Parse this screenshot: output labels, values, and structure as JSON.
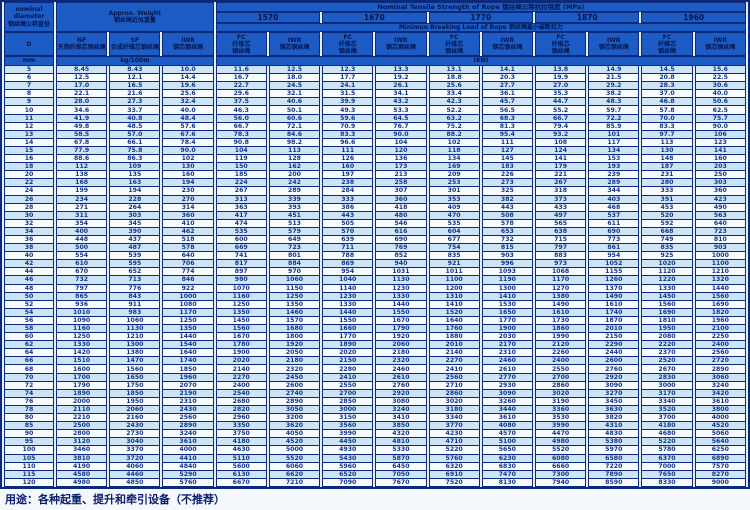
{
  "header": {
    "corner_en1": "nominal",
    "corner_en2": "diameter",
    "corner_zh": "钢丝绳公称直径",
    "weight_en": "Approx. Weight",
    "weight_zh": "钢丝绳近似重量",
    "tensile_title": "Nominal Tensile Strength of Rope 钢丝绳公称抗拉强度 (MPa)",
    "breaking_title": "Minimun Breaking Load of Rope 钢丝绳最小破断拉力",
    "strengths": [
      "1570",
      "1670",
      "1770",
      "1870",
      "1960"
    ],
    "d_label": "D",
    "d_unit": "mm",
    "nf_en": "NF",
    "nf_zh": "天然纤维芯钢丝绳",
    "sf_en": "SF",
    "sf_zh": "合成纤维芯钢丝绳",
    "iwr_en": "IWR",
    "iwr_zh": "钢芯钢丝绳",
    "weight_unit": "kg/100m",
    "fc_en": "FC",
    "fc_zh1": "纤维芯",
    "fc_zh2": "钢丝绳",
    "iwrc_en": "IWR",
    "iwrc_zh": "钢芯钢丝绳",
    "kn_label": "(KN)"
  },
  "rows": [
    [
      "5",
      "8.45",
      "8.43",
      "10.0",
      "11.6",
      "12.5",
      "12.3",
      "13.3",
      "13.1",
      "14.1",
      "13.8",
      "14.9",
      "14.5",
      "15.6"
    ],
    [
      "6",
      "12.5",
      "12.1",
      "14.4",
      "16.7",
      "18.0",
      "17.7",
      "19.2",
      "18.8",
      "20.3",
      "19.9",
      "21.5",
      "20.8",
      "22.5"
    ],
    [
      "7",
      "17.0",
      "16.5",
      "19.6",
      "22.7",
      "24.5",
      "24.1",
      "26.1",
      "25.6",
      "27.7",
      "27.0",
      "29.2",
      "28.3",
      "30.6"
    ],
    [
      "8",
      "22.1",
      "21.6",
      "25.6",
      "29.6",
      "32.1",
      "31.5",
      "34.1",
      "33.4",
      "36.1",
      "35.3",
      "38.2",
      "37.0",
      "40.0"
    ],
    [
      "9",
      "28.0",
      "27.3",
      "32.4",
      "37.5",
      "40.6",
      "39.9",
      "43.2",
      "42.3",
      "45.7",
      "44.7",
      "48.3",
      "46.8",
      "50.6"
    ],
    [
      "10",
      "34.6",
      "33.7",
      "40.0",
      "46.3",
      "50.1",
      "49.3",
      "53.3",
      "52.2",
      "56.5",
      "55.2",
      "59.7",
      "57.8",
      "62.5"
    ],
    [
      "11",
      "41.9",
      "40.8",
      "48.4",
      "56.0",
      "60.6",
      "59.6",
      "64.5",
      "63.2",
      "68.3",
      "66.7",
      "72.2",
      "70.0",
      "75.7"
    ],
    [
      "12",
      "49.8",
      "48.5",
      "57.6",
      "66.7",
      "72.1",
      "70.9",
      "76.7",
      "75.2",
      "81.3",
      "79.4",
      "85.9",
      "83.3",
      "90.0"
    ],
    [
      "13",
      "58.5",
      "57.0",
      "67.6",
      "78.3",
      "84.6",
      "83.3",
      "90.0",
      "88.2",
      "95.4",
      "93.2",
      "101",
      "97.7",
      "106"
    ],
    [
      "14",
      "67.8",
      "66.1",
      "78.4",
      "90.8",
      "98.2",
      "96.6",
      "104",
      "102",
      "111",
      "108",
      "117",
      "113",
      "123"
    ],
    [
      "15",
      "77.9",
      "75.8",
      "90.0",
      "104",
      "113",
      "111",
      "120",
      "118",
      "127",
      "124",
      "134",
      "130",
      "141"
    ],
    [
      "16",
      "88.6",
      "86.3",
      "102",
      "119",
      "128",
      "126",
      "136",
      "134",
      "145",
      "141",
      "153",
      "148",
      "160"
    ],
    [
      "18",
      "112",
      "109",
      "130",
      "150",
      "162",
      "160",
      "173",
      "169",
      "183",
      "179",
      "193",
      "187",
      "203"
    ],
    [
      "20",
      "138",
      "135",
      "160",
      "185",
      "200",
      "197",
      "213",
      "209",
      "226",
      "221",
      "239",
      "231",
      "250"
    ],
    [
      "22",
      "168",
      "163",
      "194",
      "224",
      "242",
      "238",
      "258",
      "253",
      "273",
      "267",
      "289",
      "280",
      "303"
    ],
    [
      "24",
      "199",
      "194",
      "230",
      "267",
      "289",
      "284",
      "307",
      "301",
      "325",
      "318",
      "344",
      "333",
      "360"
    ],
    [
      "26",
      "234",
      "228",
      "270",
      "313",
      "339",
      "333",
      "360",
      "353",
      "382",
      "373",
      "403",
      "391",
      "423"
    ],
    [
      "28",
      "271",
      "264",
      "314",
      "363",
      "393",
      "386",
      "418",
      "409",
      "443",
      "433",
      "468",
      "453",
      "490"
    ],
    [
      "30",
      "311",
      "303",
      "360",
      "417",
      "451",
      "443",
      "480",
      "470",
      "508",
      "497",
      "537",
      "520",
      "563"
    ],
    [
      "32",
      "354",
      "345",
      "410",
      "474",
      "513",
      "505",
      "546",
      "535",
      "578",
      "565",
      "611",
      "592",
      "640"
    ],
    [
      "34",
      "400",
      "390",
      "462",
      "535",
      "579",
      "570",
      "616",
      "604",
      "653",
      "638",
      "690",
      "668",
      "723"
    ],
    [
      "36",
      "448",
      "437",
      "518",
      "600",
      "649",
      "639",
      "690",
      "677",
      "732",
      "715",
      "773",
      "749",
      "810"
    ],
    [
      "38",
      "500",
      "487",
      "578",
      "669",
      "723",
      "711",
      "769",
      "754",
      "815",
      "797",
      "861",
      "835",
      "903"
    ],
    [
      "40",
      "554",
      "539",
      "640",
      "741",
      "801",
      "788",
      "852",
      "835",
      "903",
      "883",
      "954",
      "925",
      "1000"
    ],
    [
      "42",
      "610",
      "595",
      "706",
      "817",
      "884",
      "869",
      "940",
      "921",
      "996",
      "973",
      "1052",
      "1020",
      "1100"
    ],
    [
      "44",
      "670",
      "652",
      "774",
      "897",
      "970",
      "954",
      "1031",
      "1011",
      "1093",
      "1068",
      "1155",
      "1120",
      "1210"
    ],
    [
      "46",
      "732",
      "713",
      "846",
      "980",
      "1060",
      "1040",
      "1130",
      "1100",
      "1190",
      "1170",
      "1260",
      "1220",
      "1320"
    ],
    [
      "48",
      "797",
      "776",
      "922",
      "1070",
      "1150",
      "1140",
      "1230",
      "1200",
      "1300",
      "1270",
      "1370",
      "1330",
      "1440"
    ],
    [
      "50",
      "865",
      "843",
      "1000",
      "1160",
      "1250",
      "1230",
      "1330",
      "1310",
      "1410",
      "1380",
      "1490",
      "1450",
      "1560"
    ],
    [
      "52",
      "936",
      "911",
      "1080",
      "1250",
      "1350",
      "1330",
      "1440",
      "1410",
      "1530",
      "1490",
      "1610",
      "1560",
      "1690"
    ],
    [
      "54",
      "1010",
      "983",
      "1170",
      "1350",
      "1460",
      "1440",
      "1550",
      "1520",
      "1650",
      "1610",
      "1740",
      "1690",
      "1820"
    ],
    [
      "56",
      "1090",
      "1060",
      "1250",
      "1450",
      "1570",
      "1550",
      "1670",
      "1640",
      "1770",
      "1730",
      "1870",
      "1810",
      "1960"
    ],
    [
      "58",
      "1160",
      "1130",
      "1350",
      "1560",
      "1680",
      "1660",
      "1790",
      "1760",
      "1900",
      "1860",
      "2010",
      "1950",
      "2100"
    ],
    [
      "60",
      "1250",
      "1210",
      "1440",
      "1670",
      "1800",
      "1770",
      "1920",
      "1880",
      "2030",
      "1990",
      "2150",
      "2080",
      "2250"
    ],
    [
      "62",
      "1330",
      "1300",
      "1540",
      "1780",
      "1920",
      "1890",
      "2060",
      "2010",
      "2170",
      "2120",
      "2290",
      "2220",
      "2400"
    ],
    [
      "64",
      "1420",
      "1380",
      "1640",
      "1900",
      "2050",
      "2020",
      "2180",
      "2140",
      "2310",
      "2260",
      "2440",
      "2370",
      "2560"
    ],
    [
      "66",
      "1510",
      "1470",
      "1740",
      "2020",
      "2180",
      "2150",
      "2320",
      "2270",
      "2460",
      "2400",
      "2600",
      "2520",
      "2720"
    ],
    [
      "68",
      "1600",
      "1560",
      "1850",
      "2140",
      "2320",
      "2280",
      "2460",
      "2410",
      "2610",
      "2550",
      "2760",
      "2670",
      "2890"
    ],
    [
      "70",
      "1700",
      "1650",
      "1960",
      "2270",
      "2450",
      "2410",
      "2610",
      "2560",
      "2770",
      "2700",
      "2920",
      "2830",
      "3060"
    ],
    [
      "72",
      "1790",
      "1750",
      "2070",
      "2400",
      "2600",
      "2550",
      "2760",
      "2710",
      "2930",
      "2860",
      "3090",
      "3000",
      "3240"
    ],
    [
      "74",
      "1890",
      "1850",
      "2190",
      "2540",
      "2740",
      "2700",
      "2920",
      "2860",
      "3090",
      "3020",
      "3270",
      "3170",
      "3420"
    ],
    [
      "76",
      "2000",
      "1950",
      "2310",
      "2680",
      "2890",
      "2850",
      "3080",
      "3020",
      "3260",
      "3190",
      "3450",
      "3340",
      "3610"
    ],
    [
      "78",
      "2110",
      "2060",
      "2430",
      "2820",
      "3050",
      "3000",
      "3240",
      "3180",
      "3440",
      "3360",
      "3630",
      "3520",
      "3800"
    ],
    [
      "80",
      "2210",
      "2160",
      "2560",
      "2960",
      "3200",
      "3150",
      "3410",
      "3340",
      "3610",
      "3530",
      "3820",
      "3700",
      "4000"
    ],
    [
      "85",
      "2500",
      "2430",
      "2890",
      "3350",
      "3620",
      "3560",
      "3850",
      "3770",
      "4080",
      "3990",
      "4310",
      "4180",
      "4520"
    ],
    [
      "90",
      "2800",
      "2730",
      "3240",
      "3750",
      "4050",
      "3990",
      "4320",
      "4230",
      "4570",
      "4470",
      "4830",
      "4680",
      "5060"
    ],
    [
      "95",
      "3120",
      "3040",
      "3610",
      "4180",
      "4520",
      "4450",
      "4810",
      "4710",
      "5100",
      "4980",
      "5380",
      "5220",
      "5640"
    ],
    [
      "100",
      "3460",
      "3370",
      "4000",
      "4630",
      "5000",
      "4930",
      "5330",
      "5220",
      "5650",
      "5520",
      "5970",
      "5780",
      "6250"
    ],
    [
      "105",
      "3810",
      "3720",
      "4410",
      "5110",
      "5520",
      "5430",
      "5870",
      "5760",
      "6230",
      "6080",
      "6580",
      "6370",
      "6890"
    ],
    [
      "110",
      "4190",
      "4060",
      "4840",
      "5600",
      "6060",
      "5960",
      "6450",
      "6320",
      "6830",
      "6660",
      "7220",
      "7000",
      "7570"
    ],
    [
      "115",
      "4580",
      "4460",
      "5290",
      "6130",
      "6620",
      "6520",
      "7050",
      "6910",
      "7470",
      "7300",
      "7890",
      "7650",
      "8270"
    ],
    [
      "120",
      "4980",
      "4850",
      "5760",
      "6670",
      "7210",
      "7090",
      "7670",
      "7520",
      "8130",
      "7940",
      "8590",
      "8330",
      "9000"
    ]
  ],
  "note": {
    "text": "用途：各种起重、提升和牵引设备（不推荐）"
  }
}
